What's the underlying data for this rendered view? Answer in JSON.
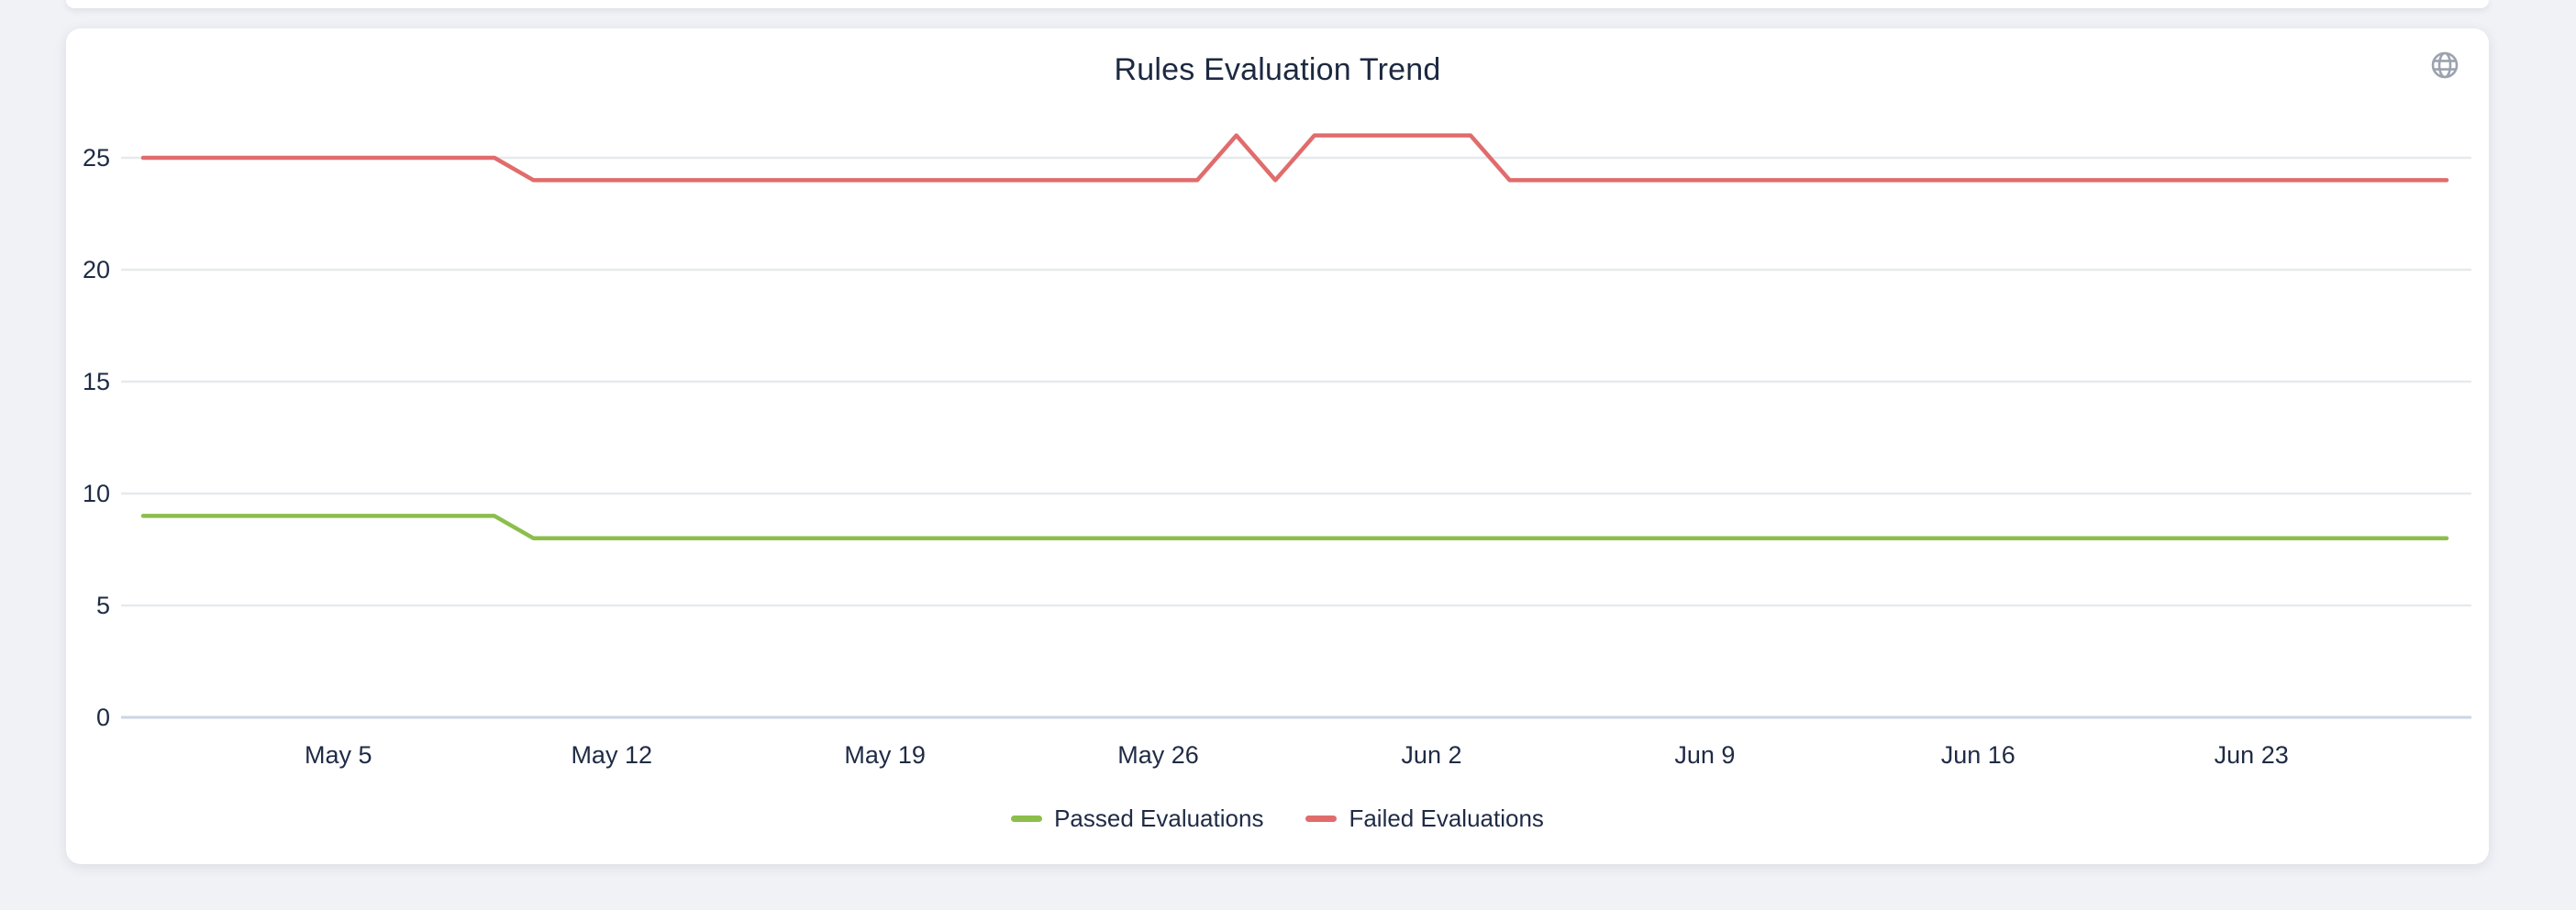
{
  "page": {
    "background_color": "#f0f2f6"
  },
  "card": {
    "background_color": "#ffffff",
    "header_icon": "globe-icon",
    "header_icon_color": "#9ca3af"
  },
  "chart_data": {
    "type": "line",
    "title": "Rules Evaluation Trend",
    "xlabel": "",
    "ylabel": "",
    "grid": true,
    "legend_position": "bottom",
    "ylim": [
      0,
      27
    ],
    "y_ticks": [
      0,
      5,
      10,
      15,
      20,
      25
    ],
    "x_tick_labels": [
      "May 5",
      "May 12",
      "May 19",
      "May 26",
      "Jun 2",
      "Jun 9",
      "Jun 16",
      "Jun 23"
    ],
    "grid_color": "#e8e9ec",
    "axis_line_color": "#ccd6e4",
    "label_color": "#1f2b45",
    "x": [
      "Apr 30",
      "May 1",
      "May 2",
      "May 3",
      "May 4",
      "May 5",
      "May 6",
      "May 7",
      "May 8",
      "May 9",
      "May 10",
      "May 11",
      "May 12",
      "May 13",
      "May 14",
      "May 15",
      "May 16",
      "May 17",
      "May 18",
      "May 19",
      "May 20",
      "May 21",
      "May 22",
      "May 23",
      "May 24",
      "May 25",
      "May 26",
      "May 27",
      "May 28",
      "May 29",
      "May 30",
      "May 31",
      "Jun 1",
      "Jun 2",
      "Jun 3",
      "Jun 4",
      "Jun 5",
      "Jun 6",
      "Jun 7",
      "Jun 8",
      "Jun 9",
      "Jun 10",
      "Jun 11",
      "Jun 12",
      "Jun 13",
      "Jun 14",
      "Jun 15",
      "Jun 16",
      "Jun 17",
      "Jun 18",
      "Jun 19",
      "Jun 20",
      "Jun 21",
      "Jun 22",
      "Jun 23",
      "Jun 24",
      "Jun 25",
      "Jun 26",
      "Jun 27",
      "Jun 28"
    ],
    "series": [
      {
        "name": "Passed Evaluations",
        "color": "#8cbe4b",
        "values": [
          9,
          9,
          9,
          9,
          9,
          9,
          9,
          9,
          9,
          9,
          8,
          8,
          8,
          8,
          8,
          8,
          8,
          8,
          8,
          8,
          8,
          8,
          8,
          8,
          8,
          8,
          8,
          8,
          8,
          8,
          8,
          8,
          8,
          8,
          8,
          8,
          8,
          8,
          8,
          8,
          8,
          8,
          8,
          8,
          8,
          8,
          8,
          8,
          8,
          8,
          8,
          8,
          8,
          8,
          8,
          8,
          8,
          8,
          8,
          8
        ]
      },
      {
        "name": "Failed Evaluations",
        "color": "#e06c6c",
        "values": [
          25,
          25,
          25,
          25,
          25,
          25,
          25,
          25,
          25,
          25,
          24,
          24,
          24,
          24,
          24,
          24,
          24,
          24,
          24,
          24,
          24,
          24,
          24,
          24,
          24,
          24,
          24,
          24,
          26,
          24,
          26,
          26,
          26,
          26,
          26,
          24,
          24,
          24,
          24,
          24,
          24,
          24,
          24,
          24,
          24,
          24,
          24,
          24,
          24,
          24,
          24,
          24,
          24,
          24,
          24,
          24,
          24,
          24,
          24,
          24
        ]
      }
    ]
  }
}
